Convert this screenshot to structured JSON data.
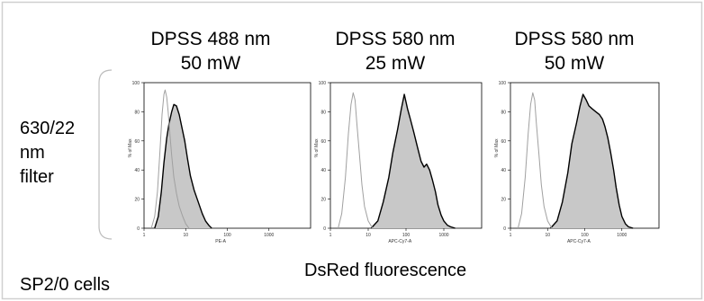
{
  "figure": {
    "columns": [
      {
        "line1": "DPSS 488 nm",
        "line2": "50 mW"
      },
      {
        "line1": "DPSS 580 nm",
        "line2": "25 mW"
      },
      {
        "line1": "DPSS 580 nm",
        "line2": "50 mW"
      }
    ],
    "row_label": [
      "630/22",
      "nm",
      "filter"
    ],
    "cell_label": "SP2/0 cells",
    "xaxis_label": "DsRed fluorescence",
    "colors": {
      "fill": "#c8c8c8",
      "positive_line": "#000000",
      "negative_line": "#a0a0a0",
      "border": "#d0d0d0"
    }
  },
  "chart_data": [
    {
      "type": "area",
      "panel": "DPSS 488 nm 50 mW",
      "xlabel": "PE-A",
      "ylabel": "% of Max",
      "xscale": "log",
      "xlim": [
        1,
        10000
      ],
      "ylim": [
        0,
        100
      ],
      "xticks": [
        "1",
        "10",
        "100",
        "1000"
      ],
      "yticks": [
        "0",
        "20",
        "40",
        "60",
        "80",
        "100"
      ],
      "series": [
        {
          "role": "positive",
          "x": [
            1.8,
            2.2,
            2.6,
            3.0,
            3.5,
            4.0,
            4.6,
            5.2,
            6.0,
            7.0,
            8.0,
            9.5,
            11,
            13,
            16,
            20,
            25,
            30,
            36,
            42
          ],
          "y": [
            0,
            8,
            25,
            45,
            62,
            72,
            80,
            85,
            84,
            78,
            70,
            60,
            48,
            36,
            26,
            18,
            10,
            5,
            2,
            0
          ]
        },
        {
          "role": "negative",
          "x": [
            1.5,
            1.8,
            2.1,
            2.4,
            2.7,
            3.0,
            3.2,
            3.5,
            3.8,
            4.2,
            4.6,
            5.2,
            6.0,
            7.0,
            8.5,
            10,
            12
          ],
          "y": [
            0,
            8,
            25,
            52,
            78,
            92,
            95,
            90,
            80,
            64,
            50,
            35,
            24,
            15,
            8,
            3,
            0
          ]
        }
      ]
    },
    {
      "type": "area",
      "panel": "DPSS 580 nm 25 mW",
      "xlabel": "APC-Cy7-A",
      "ylabel": "% of Max",
      "xscale": "log",
      "xlim": [
        1,
        10000
      ],
      "ylim": [
        0,
        100
      ],
      "xticks": [
        "1",
        "10",
        "100",
        "1000"
      ],
      "yticks": [
        "0",
        "20",
        "40",
        "60",
        "80",
        "100"
      ],
      "series": [
        {
          "role": "positive",
          "x": [
            12,
            18,
            25,
            35,
            45,
            60,
            75,
            90,
            110,
            130,
            160,
            200,
            250,
            300,
            350,
            420,
            500,
            600,
            700,
            850,
            1000,
            1250,
            1500,
            2000
          ],
          "y": [
            0,
            5,
            18,
            35,
            52,
            68,
            82,
            92,
            82,
            75,
            66,
            56,
            46,
            42,
            44,
            40,
            33,
            25,
            16,
            9,
            5,
            2,
            1,
            0
          ]
        },
        {
          "role": "negative",
          "x": [
            1.6,
            2.0,
            2.5,
            3.0,
            3.5,
            4.0,
            4.5,
            5.0,
            5.8,
            6.8,
            8.0,
            10,
            13
          ],
          "y": [
            0,
            10,
            35,
            65,
            85,
            93,
            88,
            72,
            52,
            30,
            15,
            5,
            0
          ]
        }
      ]
    },
    {
      "type": "area",
      "panel": "DPSS 580 nm 50 mW",
      "xlabel": "APC-Cy7-A",
      "ylabel": "% of Max",
      "xscale": "log",
      "xlim": [
        1,
        10000
      ],
      "ylim": [
        0,
        100
      ],
      "xticks": [
        "1",
        "10",
        "100",
        "1000"
      ],
      "yticks": [
        "0",
        "20",
        "40",
        "60",
        "80",
        "100"
      ],
      "series": [
        {
          "role": "positive",
          "x": [
            12,
            18,
            25,
            35,
            45,
            60,
            75,
            90,
            110,
            130,
            160,
            200,
            250,
            300,
            350,
            420,
            500,
            600,
            700,
            850,
            1000,
            1250,
            1500,
            2000
          ],
          "y": [
            0,
            5,
            18,
            38,
            58,
            72,
            84,
            92,
            88,
            84,
            82,
            80,
            78,
            75,
            70,
            62,
            52,
            40,
            28,
            16,
            8,
            3,
            1,
            0
          ]
        },
        {
          "role": "negative",
          "x": [
            1.6,
            2.0,
            2.5,
            3.0,
            3.5,
            4.0,
            4.5,
            5.0,
            5.8,
            6.8,
            8.0,
            10,
            13
          ],
          "y": [
            0,
            10,
            35,
            65,
            85,
            93,
            88,
            72,
            52,
            30,
            15,
            5,
            0
          ]
        }
      ]
    }
  ]
}
